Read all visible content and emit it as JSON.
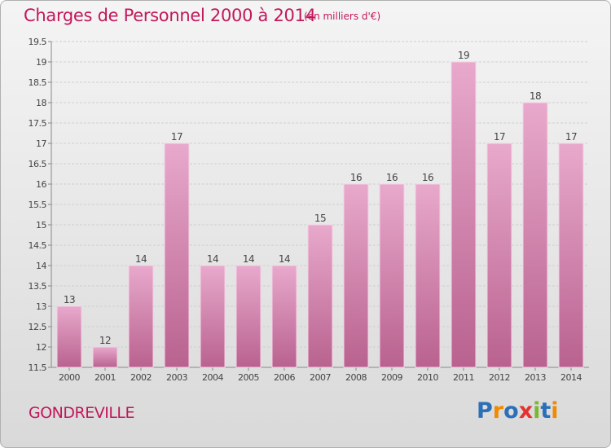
{
  "header": {
    "title": "Charges de Personnel 2000 à 2014",
    "subtitle": "(en milliers d'€)"
  },
  "footer": {
    "town": "GONDREVILLE",
    "logo_text": "Proxiti",
    "logo_letters": [
      {
        "char": "P",
        "color": "#2a6fb7"
      },
      {
        "char": "r",
        "color": "#f08a00"
      },
      {
        "char": "o",
        "color": "#2a6fb7"
      },
      {
        "char": "x",
        "color": "#e5312f"
      },
      {
        "char": "i",
        "color": "#7cb82f"
      },
      {
        "char": "t",
        "color": "#2a6fb7"
      },
      {
        "char": "i",
        "color": "#f08a00"
      }
    ]
  },
  "chart_data": {
    "type": "bar",
    "categories": [
      "2000",
      "2001",
      "2002",
      "2003",
      "2004",
      "2005",
      "2006",
      "2007",
      "2008",
      "2009",
      "2010",
      "2011",
      "2012",
      "2013",
      "2014"
    ],
    "values": [
      13,
      12,
      14,
      17,
      14,
      14,
      14,
      15,
      16,
      16,
      16,
      19,
      17,
      18,
      17
    ],
    "data_labels": [
      "13",
      "12",
      "14",
      "17",
      "14",
      "14",
      "14",
      "15",
      "16",
      "16",
      "16",
      "19",
      "17",
      "18",
      "17"
    ],
    "yticks": [
      "11.5",
      "12",
      "12.5",
      "13",
      "13.5",
      "14",
      "14.5",
      "15",
      "15.5",
      "16",
      "16.5",
      "17",
      "17.5",
      "18",
      "18.5",
      "19",
      "19.5"
    ],
    "ylim": [
      11.5,
      19.5
    ],
    "grid": "horizontal",
    "bar_color": "#d98cb8",
    "bar_color_light": "#e8a9cc",
    "bar_color_dark": "#b9628f",
    "text_color": "#444444"
  }
}
